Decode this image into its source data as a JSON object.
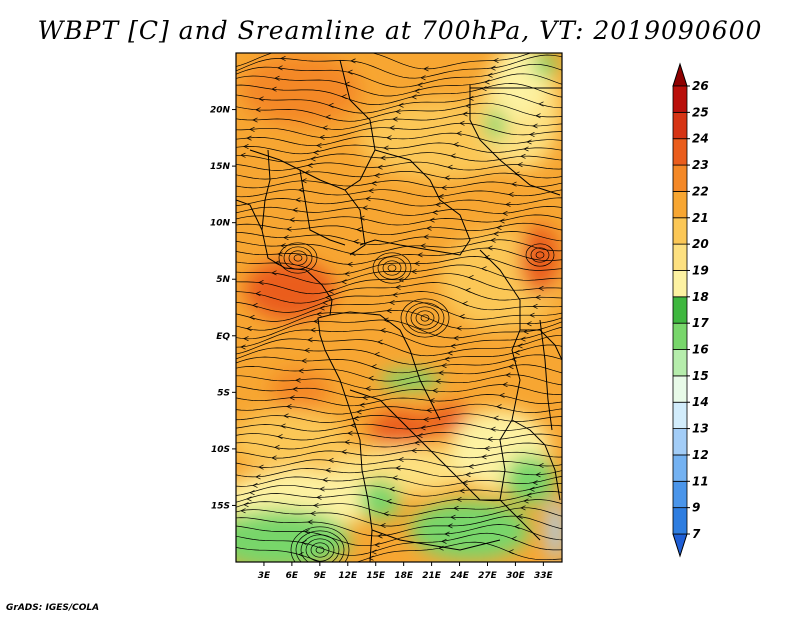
{
  "title": "WBPT [C] and Sreamline at 700hPa, VT: 2019090600",
  "credit": "GrADS: IGES/COLA",
  "lat_labels": [
    "20N",
    "15N",
    "10N",
    "5N",
    "EQ",
    "5S",
    "10S",
    "15S"
  ],
  "lon_labels": [
    "3E",
    "6E",
    "9E",
    "12E",
    "15E",
    "18E",
    "21E",
    "24E",
    "27E",
    "30E",
    "33E"
  ],
  "colorbar": {
    "labels": [
      "7",
      "9",
      "11",
      "12",
      "13",
      "14",
      "15",
      "16",
      "17",
      "18",
      "19",
      "20",
      "21",
      "22",
      "23",
      "24",
      "25",
      "26"
    ],
    "colors": [
      "#1f5fd6",
      "#2e7de0",
      "#4a95ea",
      "#74b2f2",
      "#a3cdf7",
      "#d2ecfb",
      "#e8fae8",
      "#b6edac",
      "#78d66b",
      "#3fb73f",
      "#fdf2a2",
      "#fde080",
      "#fbc756",
      "#f7a632",
      "#f48826",
      "#ea5d1c",
      "#d63414",
      "#b90f0a",
      "#8e0000"
    ]
  },
  "map": {
    "lon_range": [
      0,
      35
    ],
    "lat_range": [
      -20,
      25
    ]
  }
}
